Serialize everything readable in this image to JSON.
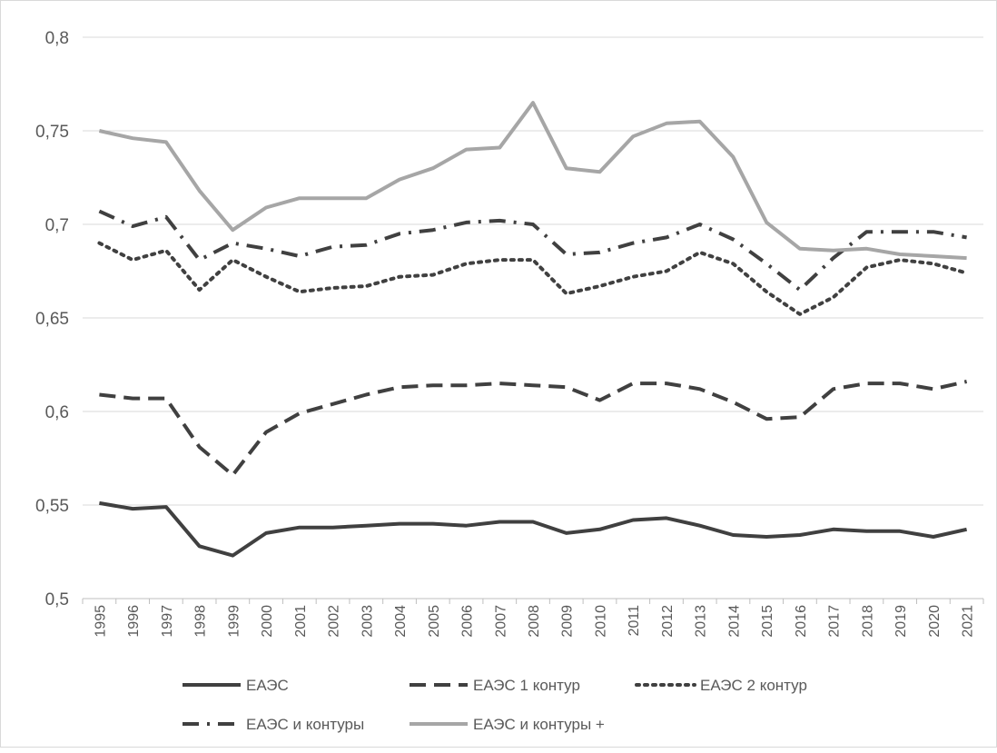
{
  "chart_data": {
    "type": "line",
    "title": "",
    "xlabel": "",
    "ylabel": "",
    "ylim": [
      0.5,
      0.8
    ],
    "y_ticks": [
      0.5,
      0.55,
      0.6,
      0.65,
      0.7,
      0.75,
      0.8
    ],
    "y_tick_labels": [
      "0,5",
      "0,55",
      "0,6",
      "0,65",
      "0,7",
      "0,75",
      "0,8"
    ],
    "grid": "horizontal",
    "legend_position": "bottom",
    "categories": [
      "1995",
      "1996",
      "1997",
      "1998",
      "1999",
      "2000",
      "2001",
      "2002",
      "2003",
      "2004",
      "2005",
      "2006",
      "2007",
      "2008",
      "2009",
      "2010",
      "2011",
      "2012",
      "2013",
      "2014",
      "2015",
      "2016",
      "2017",
      "2018",
      "2019",
      "2020",
      "2021"
    ],
    "series": [
      {
        "name": "ЕАЭС",
        "color": "#404040",
        "dash": "solid",
        "values": [
          0.551,
          0.548,
          0.549,
          0.528,
          0.523,
          0.535,
          0.538,
          0.538,
          0.539,
          0.54,
          0.54,
          0.539,
          0.541,
          0.541,
          0.535,
          0.537,
          0.542,
          0.543,
          0.539,
          0.534,
          0.533,
          0.534,
          0.537,
          0.536,
          0.536,
          0.533,
          0.537
        ]
      },
      {
        "name": "ЕАЭС 1 контур",
        "color": "#404040",
        "dash": "dash",
        "values": [
          0.609,
          0.607,
          0.607,
          0.581,
          0.566,
          0.589,
          0.599,
          0.604,
          0.609,
          0.613,
          0.614,
          0.614,
          0.615,
          0.614,
          0.613,
          0.606,
          0.615,
          0.615,
          0.612,
          0.605,
          0.596,
          0.597,
          0.612,
          0.615,
          0.615,
          0.612,
          0.616
        ]
      },
      {
        "name": "ЕАЭС 2 контур",
        "color": "#404040",
        "dash": "dot",
        "values": [
          0.69,
          0.681,
          0.686,
          0.665,
          0.681,
          0.672,
          0.664,
          0.666,
          0.667,
          0.672,
          0.673,
          0.679,
          0.681,
          0.681,
          0.663,
          0.667,
          0.672,
          0.675,
          0.685,
          0.679,
          0.664,
          0.652,
          0.661,
          0.677,
          0.681,
          0.679,
          0.674
        ]
      },
      {
        "name": "ЕАЭС и контуры",
        "color": "#404040",
        "dash": "dashdot",
        "values": [
          0.707,
          0.699,
          0.704,
          0.681,
          0.69,
          0.687,
          0.683,
          0.688,
          0.689,
          0.695,
          0.697,
          0.701,
          0.702,
          0.7,
          0.684,
          0.685,
          0.69,
          0.693,
          0.7,
          0.692,
          0.679,
          0.665,
          0.682,
          0.696,
          0.696,
          0.696,
          0.693
        ]
      },
      {
        "name": "ЕАЭС и контуры +",
        "color": "#a6a6a6",
        "dash": "solid",
        "values": [
          0.75,
          0.746,
          0.744,
          0.718,
          0.697,
          0.709,
          0.714,
          0.714,
          0.714,
          0.724,
          0.73,
          0.74,
          0.741,
          0.765,
          0.73,
          0.728,
          0.747,
          0.754,
          0.755,
          0.736,
          0.701,
          0.687,
          0.686,
          0.687,
          0.684,
          0.683,
          0.682
        ]
      }
    ]
  }
}
